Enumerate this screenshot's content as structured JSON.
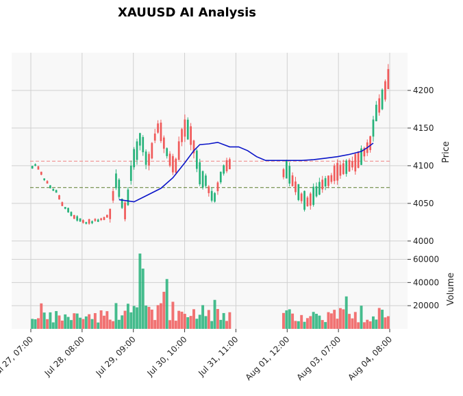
{
  "chart_data": {
    "type": "candlestick",
    "title": "XAUUSD AI Analysis",
    "colors": {
      "up": "#26b27a",
      "down": "#f05a5a",
      "ma": "#0a14c8",
      "upper_line": "#f08080",
      "lower_line": "#5a7a2a",
      "grid": "#d0d0d0",
      "panel_bg": "#f8f8f8"
    },
    "price_panel": {
      "ylabel": "Price",
      "ylim": [
        3988,
        4250
      ],
      "yticks": [
        4000,
        4050,
        4100,
        4150,
        4200
      ],
      "horizontal_lines": [
        {
          "value": 4106,
          "style": "dashed",
          "color": "#f08080"
        },
        {
          "value": 4071,
          "style": "dashed",
          "color": "#5a7a2a"
        }
      ]
    },
    "volume_panel": {
      "ylabel": "Volume",
      "ylim": [
        0,
        68000
      ],
      "yticks": [
        20000,
        40000,
        60000
      ]
    },
    "x_ticks": [
      "Jul 27, 07:00",
      "Jul 28, 08:00",
      "Jul 29, 09:00",
      "Jul 30, 10:00",
      "Jul 31, 11:00",
      "Aug 01, 12:00",
      "Aug 03, 07:00",
      "Aug 04, 08:00"
    ],
    "segments": [
      {
        "from": 0,
        "to": 8,
        "trend": [
          4098,
          4101,
          4097,
          4090,
          4082,
          4078,
          4072,
          4068,
          4066
        ],
        "amp": 5,
        "vol": 8000
      },
      {
        "from": 8,
        "to": 16,
        "trend": [
          4066,
          4058,
          4049,
          4044,
          4041,
          4036,
          4032,
          4030,
          4028
        ],
        "amp": 6,
        "vol": 9000
      },
      {
        "from": 16,
        "to": 26,
        "trend": [
          4028,
          4026,
          4024,
          4026,
          4025,
          4028,
          4027,
          4029,
          4030,
          4033,
          4036
        ],
        "amp": 6,
        "vol": 10000
      },
      {
        "from": 26,
        "to": 34,
        "trend": [
          4036,
          4060,
          4080,
          4070,
          4050,
          4040,
          4058,
          4090,
          4110
        ],
        "amp": 30,
        "vol": 13000
      },
      {
        "from": 34,
        "to": 48,
        "trend": [
          4110,
          4120,
          4135,
          4128,
          4110,
          4108,
          4120,
          4138,
          4150,
          4145,
          4130,
          4118,
          4108,
          4102,
          4100
        ],
        "amp": 26,
        "vol": 14000
      },
      {
        "from": 48,
        "to": 58,
        "trend": [
          4100,
          4120,
          4140,
          4150,
          4148,
          4140,
          4125,
          4108,
          4090,
          4082,
          4080
        ],
        "amp": 30,
        "vol": 13000
      },
      {
        "from": 58,
        "to": 67,
        "trend": [
          4080,
          4068,
          4060,
          4058,
          4072,
          4085,
          4095,
          4100,
          4102,
          4101
        ],
        "amp": 20,
        "vol": 11000
      },
      {
        "from": 84,
        "to": 100,
        "trend": [
          4090,
          4095,
          4088,
          4080,
          4072,
          4065,
          4058,
          4054,
          4052,
          4055,
          4060,
          4066,
          4070,
          4075,
          4078,
          4080,
          4083
        ],
        "amp": 26,
        "vol": 10000
      },
      {
        "from": 100,
        "to": 112,
        "trend": [
          4083,
          4090,
          4092,
          4094,
          4096,
          4098,
          4100,
          4102,
          4104,
          4108,
          4112,
          4118,
          4124
        ],
        "amp": 24,
        "vol": 11000
      },
      {
        "from": 112,
        "to": 120,
        "trend": [
          4124,
          4130,
          4150,
          4170,
          4180,
          4188,
          4200,
          4215,
          4222
        ],
        "amp": 28,
        "vol": 12000
      }
    ],
    "ma_line": [
      {
        "i": 29,
        "y": 4055
      },
      {
        "i": 34,
        "y": 4052
      },
      {
        "i": 38,
        "y": 4060
      },
      {
        "i": 43,
        "y": 4070
      },
      {
        "i": 47,
        "y": 4084
      },
      {
        "i": 51,
        "y": 4104
      },
      {
        "i": 54,
        "y": 4120
      },
      {
        "i": 56,
        "y": 4128
      },
      {
        "i": 59,
        "y": 4129
      },
      {
        "i": 62,
        "y": 4131
      },
      {
        "i": 66,
        "y": 4125
      },
      {
        "i": 69,
        "y": 4125
      },
      {
        "i": 72,
        "y": 4120
      },
      {
        "i": 75,
        "y": 4112
      },
      {
        "i": 78,
        "y": 4107
      },
      {
        "i": 82,
        "y": 4107
      },
      {
        "i": 86,
        "y": 4107
      },
      {
        "i": 90,
        "y": 4107
      },
      {
        "i": 94,
        "y": 4108
      },
      {
        "i": 98,
        "y": 4110
      },
      {
        "i": 102,
        "y": 4112
      },
      {
        "i": 106,
        "y": 4115
      },
      {
        "i": 110,
        "y": 4119
      },
      {
        "i": 112,
        "y": 4124
      },
      {
        "i": 114,
        "y": 4130
      }
    ],
    "volume_spikes": [
      {
        "i": 36,
        "v": 65000
      },
      {
        "i": 37,
        "v": 52000
      },
      {
        "i": 45,
        "v": 43000
      },
      {
        "i": 44,
        "v": 32000
      },
      {
        "i": 61,
        "v": 25000
      },
      {
        "i": 105,
        "v": 28000
      },
      {
        "i": 3,
        "v": 22000
      },
      {
        "i": 110,
        "v": 20000
      }
    ]
  }
}
